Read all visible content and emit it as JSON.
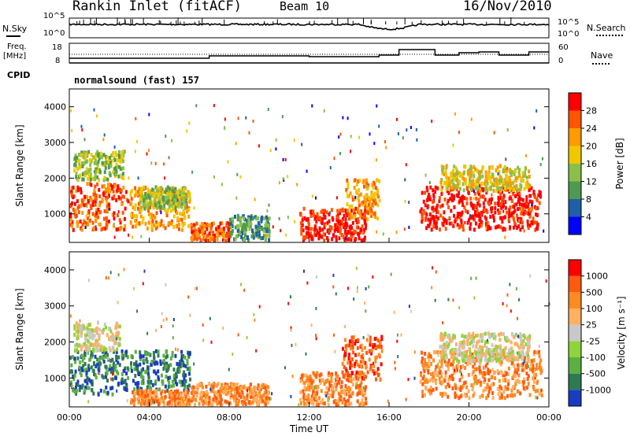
{
  "header": {
    "station": "Rankin Inlet (fitACF)",
    "beam": "Beam 10",
    "date": "16/Nov/2010"
  },
  "noise_panel": {
    "left_label": "N.Sky",
    "right_label": "N.Search",
    "left_ticks": [
      "10^5",
      "10^0"
    ],
    "right_ticks": [
      "10^5",
      "10^0"
    ]
  },
  "freq_panel": {
    "left_label_1": "Freq.",
    "left_label_2": "[MHz]",
    "left_ticks": [
      "18",
      "8"
    ],
    "right_ticks": [
      "60",
      "0"
    ],
    "right_label": "Nave",
    "cpid_label": "CPID"
  },
  "program": "normalsound (fast) 157",
  "colors": {
    "power_scale": [
      "#0000ff",
      "#1f5fa8",
      "#4f9a50",
      "#8ac04a",
      "#f0c800",
      "#ff9a00",
      "#ff5500",
      "#ff0000"
    ],
    "velocity_scale": [
      "#1a3cc0",
      "#2e7a55",
      "#5cb040",
      "#8fd43a",
      "#c8c8c8",
      "#ffb060",
      "#ff8a20",
      "#ff5a10",
      "#ff0000"
    ]
  },
  "chart_data": [
    {
      "type": "heatmap",
      "name": "power",
      "ylabel": "Slant Range [km]",
      "yticks": [
        "1000",
        "2000",
        "3000",
        "4000"
      ],
      "ylim": [
        200,
        4500
      ],
      "xlim": [
        0,
        24
      ],
      "colorbar_label": "Power [dB]",
      "colorbar_ticks": [
        "4",
        "8",
        "12",
        "16",
        "20",
        "24",
        "28"
      ],
      "blobs": [
        {
          "t": 0.0,
          "t2": 2.9,
          "r1": 600,
          "r2": 1900,
          "level": 6
        },
        {
          "t": 0.2,
          "t2": 2.7,
          "r1": 2000,
          "r2": 2800,
          "level": 3
        },
        {
          "t": 3.0,
          "t2": 6.0,
          "r1": 600,
          "r2": 1800,
          "level": 5
        },
        {
          "t": 3.5,
          "t2": 5.8,
          "r1": 1200,
          "r2": 1800,
          "level": 3
        },
        {
          "t": 6.0,
          "t2": 8.0,
          "r1": 300,
          "r2": 800,
          "level": 6
        },
        {
          "t": 8.0,
          "t2": 10.0,
          "r1": 300,
          "r2": 1000,
          "level": 2
        },
        {
          "t": 11.5,
          "t2": 14.8,
          "r1": 300,
          "r2": 1200,
          "level": 7
        },
        {
          "t": 13.8,
          "t2": 15.5,
          "r1": 900,
          "r2": 2000,
          "level": 5
        },
        {
          "t": 17.5,
          "t2": 23.6,
          "r1": 600,
          "r2": 1800,
          "level": 7
        },
        {
          "t": 18.5,
          "t2": 23.0,
          "r1": 1700,
          "r2": 2400,
          "level": 4
        }
      ]
    },
    {
      "type": "heatmap",
      "name": "velocity",
      "ylabel": "Slant Range [km]",
      "yticks": [
        "1000",
        "2000",
        "3000",
        "4000"
      ],
      "ylim": [
        200,
        4500
      ],
      "xlim": [
        0,
        24
      ],
      "xlabel": "Time UT",
      "xticks": [
        "00:00",
        "04:00",
        "08:00",
        "12:00",
        "16:00",
        "20:00",
        "00:00"
      ],
      "colorbar_label": "Velocity [m s⁻¹]",
      "colorbar_ticks": [
        "1000",
        "500",
        "100",
        "25",
        "-25",
        "-100",
        "-500",
        "-1000"
      ],
      "blobs": [
        {
          "t": 0.0,
          "t2": 2.9,
          "r1": 600,
          "r2": 1800,
          "level": 1
        },
        {
          "t": 0.2,
          "t2": 2.5,
          "r1": 1800,
          "r2": 2600,
          "level": 4
        },
        {
          "t": 3.0,
          "t2": 6.0,
          "r1": 700,
          "r2": 1800,
          "level": 1
        },
        {
          "t": 3.0,
          "t2": 6.0,
          "r1": 300,
          "r2": 700,
          "level": 6
        },
        {
          "t": 6.0,
          "t2": 10.0,
          "r1": 300,
          "r2": 900,
          "level": 6
        },
        {
          "t": 11.5,
          "t2": 14.8,
          "r1": 300,
          "r2": 1200,
          "level": 6
        },
        {
          "t": 13.6,
          "t2": 15.6,
          "r1": 1000,
          "r2": 2200,
          "level": 7
        },
        {
          "t": 17.5,
          "t2": 23.6,
          "r1": 500,
          "r2": 1800,
          "level": 6
        },
        {
          "t": 18.5,
          "t2": 23.0,
          "r1": 1500,
          "r2": 2300,
          "level": 4
        }
      ]
    }
  ]
}
